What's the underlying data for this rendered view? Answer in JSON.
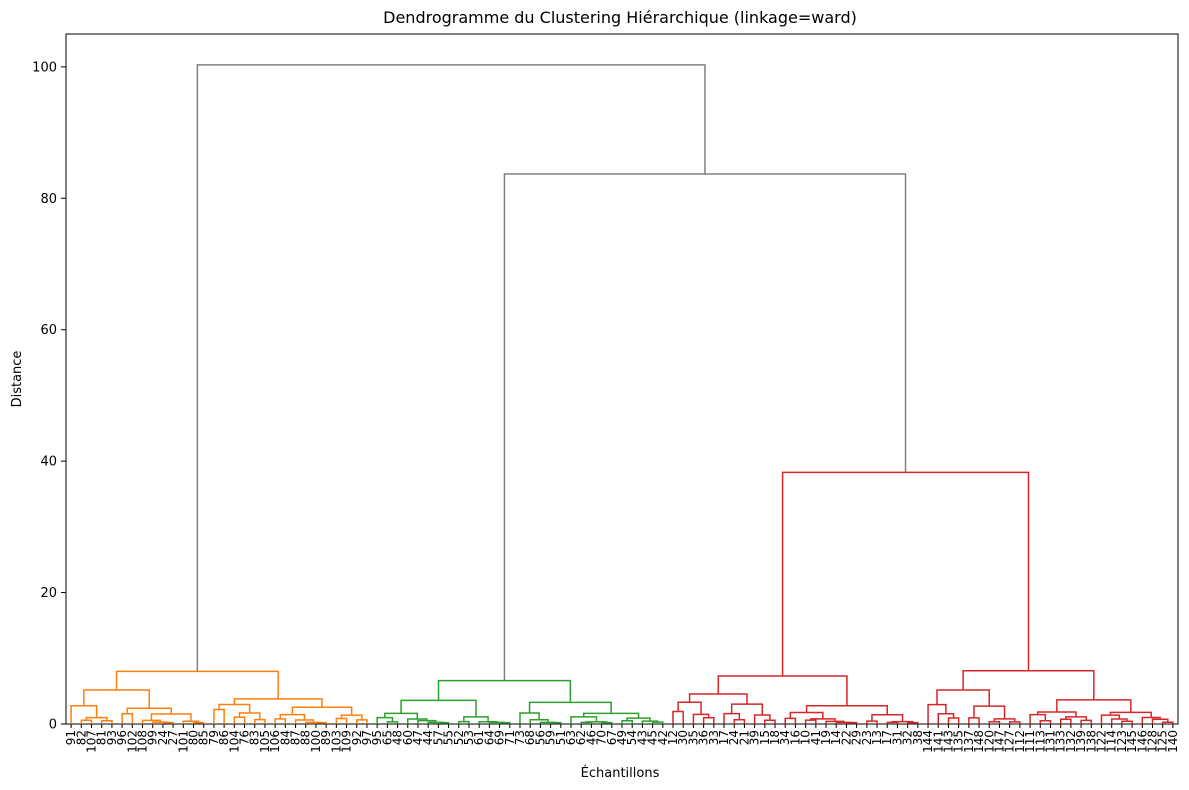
{
  "chart_data": {
    "type": "dendrogram",
    "title": "Dendrogramme du Clustering Hiérarchique (linkage=ward)",
    "xlabel": "Échantillons",
    "ylabel": "Distance",
    "ylim": [
      0,
      105
    ],
    "yticks": [
      0,
      20,
      40,
      60,
      80,
      100
    ],
    "grid": false,
    "colors": {
      "cluster_1": "#ff7f0e",
      "cluster_2": "#2ca02c",
      "cluster_3": "#d62728",
      "above_threshold": "#808080"
    },
    "clusters": [
      {
        "color_key": "cluster_1",
        "merge_distance": 8.0,
        "leaves": [
          "91",
          "82",
          "107",
          "81",
          "93",
          "96",
          "102",
          "108",
          "99",
          "24",
          "27",
          "101",
          "80",
          "85",
          "79",
          "86",
          "104",
          "76",
          "83",
          "105",
          "106",
          "84",
          "87",
          "88",
          "100",
          "89",
          "103",
          "109",
          "92",
          "97"
        ]
      },
      {
        "color_key": "cluster_2",
        "merge_distance": 6.6,
        "leaves": [
          "95",
          "65",
          "48",
          "60",
          "47",
          "44",
          "57",
          "55",
          "52",
          "53",
          "61",
          "64",
          "69",
          "71",
          "73",
          "68",
          "56",
          "59",
          "51",
          "63",
          "62",
          "46",
          "70",
          "67",
          "49",
          "54",
          "43",
          "45",
          "42"
        ]
      },
      {
        "color_key": "cluster_3",
        "merge_distance": 38.3,
        "leaves": [
          "12",
          "30",
          "35",
          "36",
          "33",
          "17",
          "24",
          "21",
          "39",
          "15",
          "18",
          "34",
          "16",
          "10",
          "41",
          "19",
          "14",
          "22",
          "29",
          "23",
          "13",
          "17",
          "31",
          "32",
          "38",
          "144",
          "141",
          "143",
          "135",
          "137",
          "148",
          "120",
          "147",
          "127",
          "112",
          "111",
          "113",
          "131",
          "133",
          "132",
          "139",
          "138",
          "122",
          "114",
          "123",
          "145",
          "146",
          "128",
          "125",
          "140"
        ]
      }
    ],
    "top_merges": [
      {
        "between": [
          "cluster_2",
          "cluster_3"
        ],
        "distance": 83.7
      },
      {
        "between": [
          "cluster_1",
          "cluster_2+cluster_3"
        ],
        "distance": 100.3
      }
    ]
  }
}
